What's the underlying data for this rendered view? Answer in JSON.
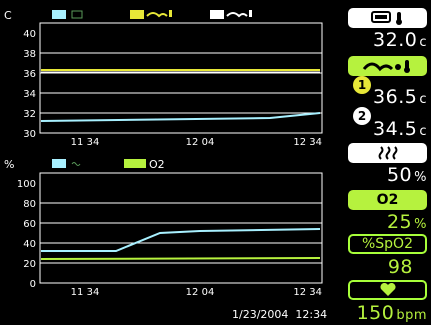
{
  "top_chart": {
    "unit": "C",
    "y_ticks": [
      "40",
      "38",
      "36",
      "34",
      "32",
      "30"
    ],
    "x_ticks": [
      "11:34",
      "12:04",
      "12:34"
    ]
  },
  "bottom_chart": {
    "unit": "%",
    "y_ticks": [
      "100",
      "80",
      "60",
      "40",
      "20",
      "0"
    ],
    "x_ticks": [
      "11:34",
      "12:04",
      "12:34"
    ],
    "legend_o2": "O2"
  },
  "status": {
    "timestamp": "1/23/2004  12:34"
  },
  "readouts": {
    "air_temp": {
      "value": "32.0",
      "unit": "c"
    },
    "skin1": {
      "badge": "1",
      "value": "36.5",
      "unit": "c"
    },
    "skin2": {
      "badge": "2",
      "value": "34.5",
      "unit": "c"
    },
    "humidity": {
      "value": "50",
      "unit": "%"
    },
    "o2": {
      "label": "O2",
      "value": "25",
      "unit": "%"
    },
    "spo2": {
      "label": "%SpO2",
      "value": "98"
    },
    "pulse": {
      "value": "150",
      "unit": "bpm"
    }
  },
  "colors": {
    "green": "#b6f23e",
    "cyan": "#a8f0ff",
    "yellow": "#e8e838",
    "white": "#ffffff",
    "grid": "#ffffff"
  },
  "icons": [
    "incubator-icon",
    "baby-temp-icon",
    "humidity-icon",
    "heart-icon"
  ]
}
